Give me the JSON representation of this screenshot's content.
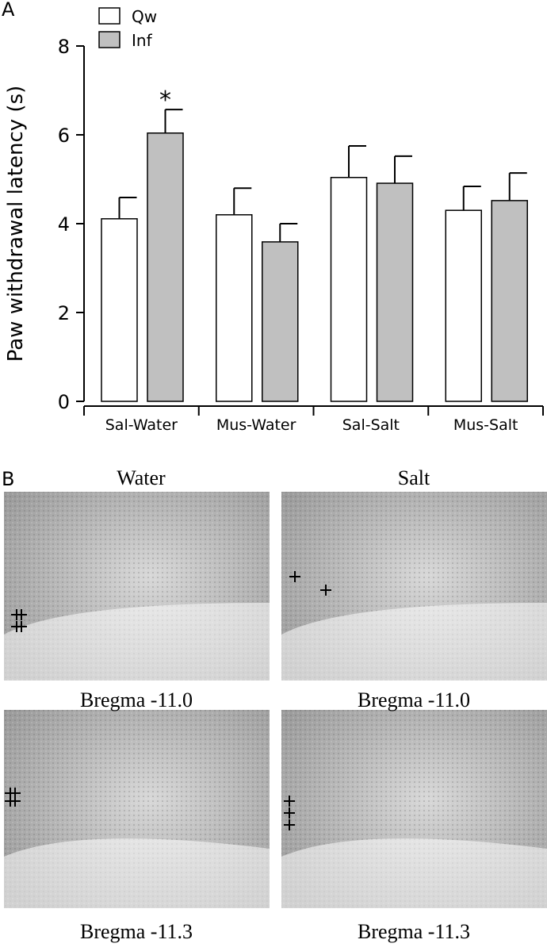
{
  "panel_labels": [
    "A",
    "B"
  ],
  "chart_data": {
    "type": "bar",
    "ylabel": "Paw withdrawal latency (s)",
    "categories": [
      "Sal-Water",
      "Mus-Water",
      "Sal-Salt",
      "Mus-Salt"
    ],
    "series": [
      {
        "name": "Qw",
        "color": "#ffffff",
        "values": [
          4.11,
          4.2,
          5.04,
          4.3
        ],
        "errors": [
          0.48,
          0.6,
          0.71,
          0.54
        ]
      },
      {
        "name": "Inf",
        "color": "#c0c0c0",
        "values": [
          6.04,
          3.59,
          4.91,
          4.52
        ],
        "errors": [
          0.53,
          0.41,
          0.61,
          0.62
        ]
      }
    ],
    "annotation": "*",
    "ylim": [
      0,
      8
    ],
    "yticks": [
      0,
      2,
      4,
      6,
      8
    ],
    "grid": false
  },
  "panel_b": {
    "columns": [
      "Water",
      "Salt"
    ],
    "captions": [
      [
        "Bregma -11.0",
        "Bregma -11.0"
      ],
      [
        "Bregma -11.3",
        "Bregma -11.3"
      ]
    ]
  }
}
